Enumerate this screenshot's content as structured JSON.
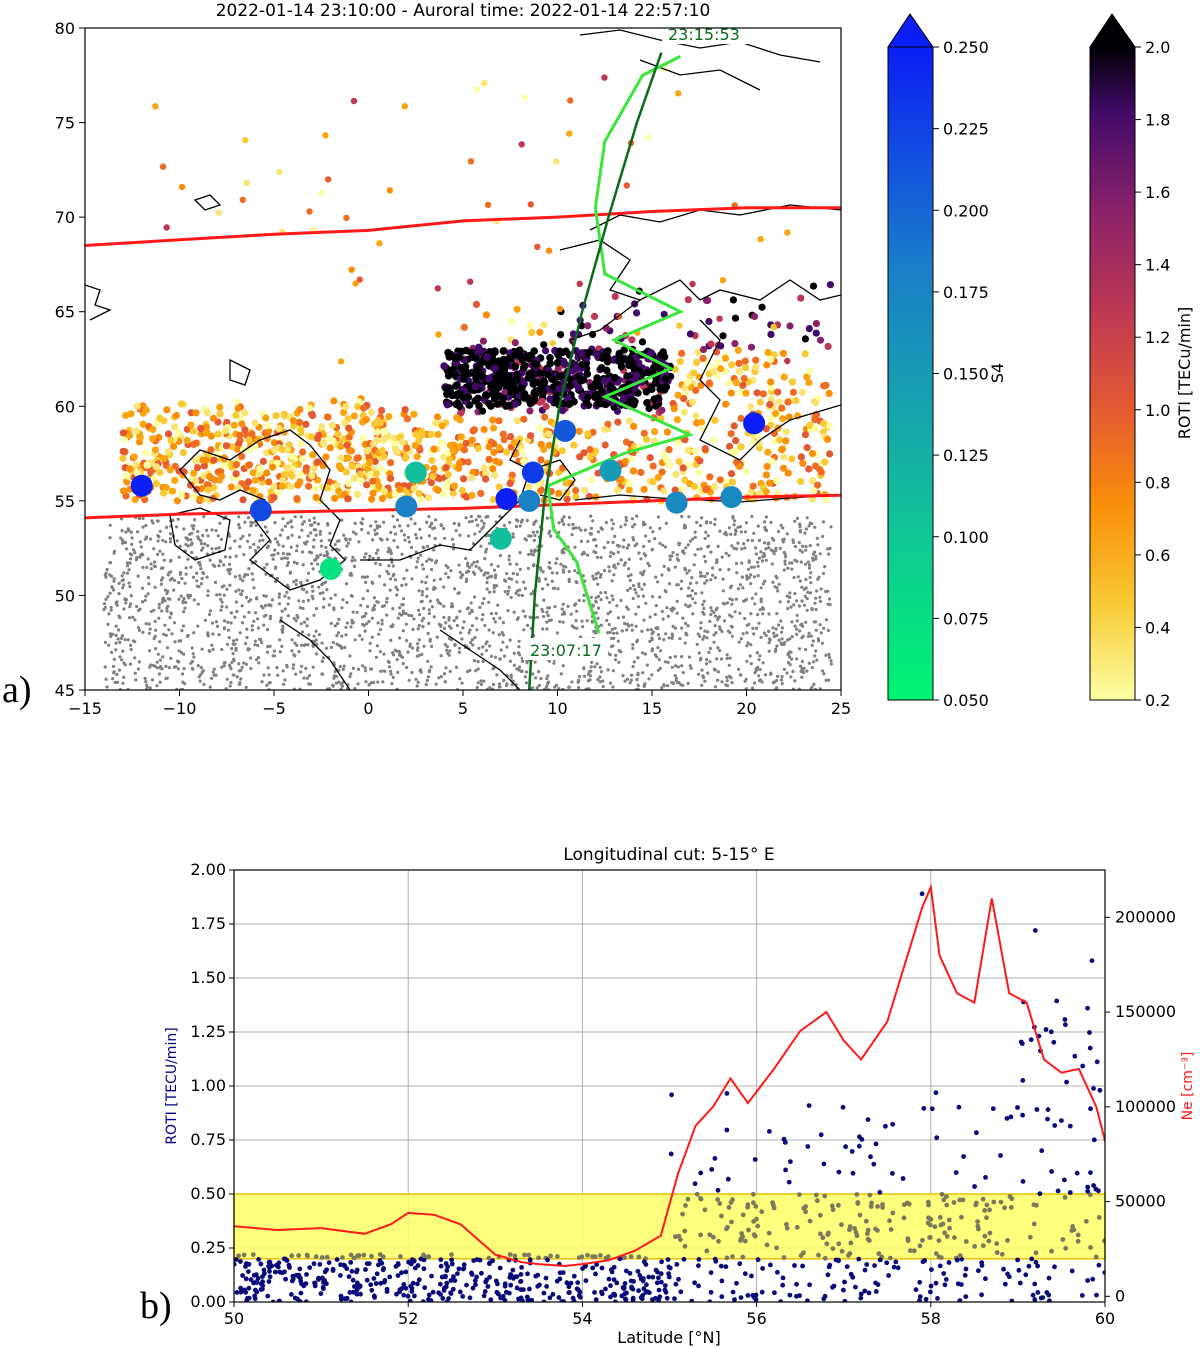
{
  "chart_data": [
    {
      "type": "scatter",
      "panel_label": "a)",
      "title": "2022-01-14 23:10:00 - Auroral time: 2022-01-14 22:57:10",
      "xlim": [
        -15,
        25
      ],
      "ylim": [
        45,
        80
      ],
      "xticks": [
        -15,
        -10,
        -5,
        0,
        5,
        10,
        15,
        20,
        25
      ],
      "yticks": [
        45,
        50,
        55,
        60,
        65,
        70,
        75,
        80
      ],
      "auroral_boundary_north": [
        [
          -15,
          68.5
        ],
        [
          -10,
          68.8
        ],
        [
          -5,
          69.1
        ],
        [
          0,
          69.3
        ],
        [
          5,
          69.8
        ],
        [
          10,
          70.0
        ],
        [
          15,
          70.3
        ],
        [
          20,
          70.5
        ],
        [
          25,
          70.5
        ]
      ],
      "auroral_boundary_south": [
        [
          -15,
          54.1
        ],
        [
          -10,
          54.3
        ],
        [
          -5,
          54.4
        ],
        [
          0,
          54.5
        ],
        [
          5,
          54.6
        ],
        [
          10,
          54.8
        ],
        [
          15,
          55.0
        ],
        [
          20,
          55.2
        ],
        [
          25,
          55.3
        ]
      ],
      "satellite_track": [
        [
          8.5,
          45
        ],
        [
          8.8,
          50
        ],
        [
          9.3,
          55
        ],
        [
          10.1,
          60
        ],
        [
          11.3,
          65
        ],
        [
          12.7,
          70
        ],
        [
          14.2,
          75
        ],
        [
          15.5,
          78.7
        ]
      ],
      "satellite_ne_overlay": [
        [
          12.2,
          48
        ],
        [
          11.0,
          51.8
        ],
        [
          9.8,
          53.5
        ],
        [
          9.5,
          55.8
        ],
        [
          13.5,
          57.5
        ],
        [
          17.0,
          58.5
        ],
        [
          12.5,
          60.5
        ],
        [
          16.0,
          62
        ],
        [
          13.0,
          63.5
        ],
        [
          16.5,
          65
        ],
        [
          12.5,
          67
        ],
        [
          12.0,
          70.5
        ],
        [
          12.5,
          74
        ],
        [
          14.5,
          77.5
        ],
        [
          16.5,
          78.5
        ]
      ],
      "track_label_start": "23:07:17",
      "track_label_end": "23:15:53",
      "s4_stations": [
        {
          "lon": -12.0,
          "lat": 55.8,
          "s4": 0.25
        },
        {
          "lon": -5.7,
          "lat": 54.5,
          "s4": 0.22
        },
        {
          "lon": -2.0,
          "lat": 51.4,
          "s4": 0.07
        },
        {
          "lon": 2.0,
          "lat": 54.7,
          "s4": 0.18
        },
        {
          "lon": 2.5,
          "lat": 56.5,
          "s4": 0.11
        },
        {
          "lon": 7.0,
          "lat": 53.0,
          "s4": 0.11
        },
        {
          "lon": 7.3,
          "lat": 55.1,
          "s4": 0.25
        },
        {
          "lon": 8.5,
          "lat": 55.0,
          "s4": 0.18
        },
        {
          "lon": 8.7,
          "lat": 56.5,
          "s4": 0.23
        },
        {
          "lon": 10.4,
          "lat": 58.7,
          "s4": 0.21
        },
        {
          "lon": 12.8,
          "lat": 56.6,
          "s4": 0.15
        },
        {
          "lon": 16.3,
          "lat": 54.9,
          "s4": 0.17
        },
        {
          "lon": 19.2,
          "lat": 55.2,
          "s4": 0.17
        },
        {
          "lon": 20.4,
          "lat": 59.1,
          "s4": 0.25
        }
      ],
      "colorbar_s4": {
        "label": "S4",
        "range": [
          0.05,
          0.25
        ],
        "ticks": [
          "0.050",
          "0.075",
          "0.100",
          "0.125",
          "0.150",
          "0.175",
          "0.200",
          "0.225",
          "0.250"
        ]
      },
      "colorbar_roti": {
        "label": "ROTI [TECu/min]",
        "range": [
          0.2,
          2.0
        ],
        "ticks": [
          "0.2",
          "0.4",
          "0.6",
          "0.8",
          "1.0",
          "1.2",
          "1.4",
          "1.6",
          "1.8",
          "2.0"
        ]
      }
    },
    {
      "type": "scatter",
      "panel_label": "b)",
      "title": "Longitudinal cut: 5-15° E",
      "xlabel": "Latitude [°N]",
      "ylabel": "ROTI [TECU/min]",
      "ylabel_right": "Ne  [cm⁻³]",
      "xlim": [
        50,
        60
      ],
      "ylim": [
        0,
        2.0
      ],
      "ylim_right": [
        -3000,
        225000
      ],
      "xticks": [
        50,
        52,
        54,
        56,
        58,
        60
      ],
      "yticks": [
        "0.00",
        "0.25",
        "0.50",
        "0.75",
        "1.00",
        "1.25",
        "1.50",
        "1.75",
        "2.00"
      ],
      "yticks_right": [
        0,
        50000,
        100000,
        150000,
        200000
      ],
      "shaded_band": [
        0.2,
        0.5
      ],
      "ne_series": [
        [
          50,
          37000
        ],
        [
          50.5,
          35000
        ],
        [
          51,
          36000
        ],
        [
          51.5,
          33000
        ],
        [
          51.8,
          38000
        ],
        [
          52,
          44000
        ],
        [
          52.3,
          43000
        ],
        [
          52.6,
          38000
        ],
        [
          52.8,
          30000
        ],
        [
          53,
          22000
        ],
        [
          53.3,
          18000
        ],
        [
          53.5,
          17000
        ],
        [
          53.8,
          16000
        ],
        [
          54,
          17000
        ],
        [
          54.3,
          19000
        ],
        [
          54.6,
          24000
        ],
        [
          54.9,
          32000
        ],
        [
          55.1,
          65000
        ],
        [
          55.3,
          90000
        ],
        [
          55.5,
          100000
        ],
        [
          55.7,
          115000
        ],
        [
          55.9,
          102000
        ],
        [
          56.2,
          120000
        ],
        [
          56.5,
          140000
        ],
        [
          56.8,
          150000
        ],
        [
          57.0,
          135000
        ],
        [
          57.2,
          125000
        ],
        [
          57.5,
          145000
        ],
        [
          57.7,
          175000
        ],
        [
          57.9,
          205000
        ],
        [
          58.0,
          216000
        ],
        [
          58.1,
          180000
        ],
        [
          58.3,
          160000
        ],
        [
          58.5,
          155000
        ],
        [
          58.7,
          210000
        ],
        [
          58.9,
          160000
        ],
        [
          59.1,
          155000
        ],
        [
          59.3,
          125000
        ],
        [
          59.5,
          118000
        ],
        [
          59.7,
          120000
        ],
        [
          59.9,
          100000
        ],
        [
          60.0,
          82000
        ]
      ]
    }
  ]
}
